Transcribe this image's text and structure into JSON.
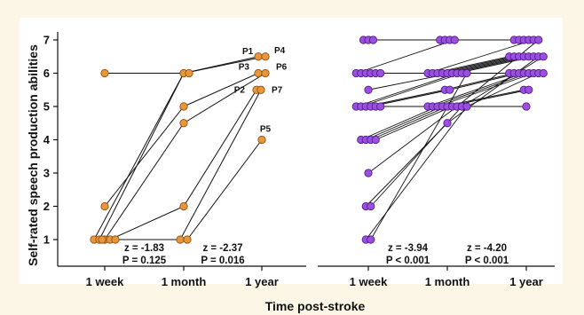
{
  "chart_data": {
    "type": "scatter",
    "ylabel": "Self-rated speech production abilities",
    "xlabel": "Time post-stroke",
    "x_categories": [
      "1 week",
      "1 month",
      "1 year"
    ],
    "y_ticks": [
      "1",
      "2",
      "3",
      "4",
      "5",
      "6",
      "7"
    ],
    "ylim": [
      1,
      7
    ],
    "colors": {
      "left_marker": "#e8963a",
      "right_marker": "#9b4ee0",
      "background": "#fbf6e6",
      "frame": "#ffffff"
    },
    "left_panel": {
      "stats": [
        {
          "z": "z = -1.83",
          "p": "P = 0.125"
        },
        {
          "z": "z = -2.37",
          "p": "P = 0.016"
        }
      ],
      "participants": [
        {
          "label": "P1",
          "values": [
            1,
            6,
            6.5
          ]
        },
        {
          "label": "P4",
          "values": [
            1,
            6,
            6.5
          ]
        },
        {
          "label": "P3",
          "values": [
            2,
            5,
            6
          ]
        },
        {
          "label": "P6",
          "values": [
            1,
            4.5,
            6
          ]
        },
        {
          "label": "P2",
          "values": [
            1,
            2,
            5.5
          ]
        },
        {
          "label": "P7",
          "values": [
            1,
            1,
            5.5
          ]
        },
        {
          "label": "P5",
          "values": [
            1,
            1,
            4
          ]
        }
      ],
      "extra_points": [
        {
          "x": 0,
          "y": 6
        },
        {
          "x": 1,
          "y": 6
        }
      ],
      "extra_lines": [
        {
          "from": [
            0,
            6
          ],
          "to": [
            1,
            6
          ]
        }
      ]
    },
    "right_panel": {
      "stats": [
        {
          "z": "z = -3.94",
          "p": "P < 0.001"
        },
        {
          "z": "z = -4.20",
          "p": "P < 0.001"
        }
      ],
      "week": [
        7,
        7,
        7,
        6,
        6,
        6,
        6,
        6,
        6,
        5.5,
        5,
        5,
        5,
        5,
        5,
        5,
        4,
        4,
        4,
        4,
        3,
        2,
        2,
        1,
        1
      ],
      "month": [
        7,
        7,
        7,
        7,
        6,
        6,
        6,
        6,
        6,
        6,
        6,
        6,
        5.5,
        5.5,
        5,
        5,
        5,
        5,
        5,
        5,
        5,
        4.5,
        5,
        5,
        6
      ],
      "year": [
        7,
        7,
        7,
        7,
        7,
        6.5,
        6.5,
        6.5,
        6.5,
        6.5,
        6.5,
        6,
        6,
        6,
        6,
        6,
        6,
        5.5,
        5.5,
        5,
        7,
        6.5,
        6.5,
        6,
        6
      ]
    }
  }
}
